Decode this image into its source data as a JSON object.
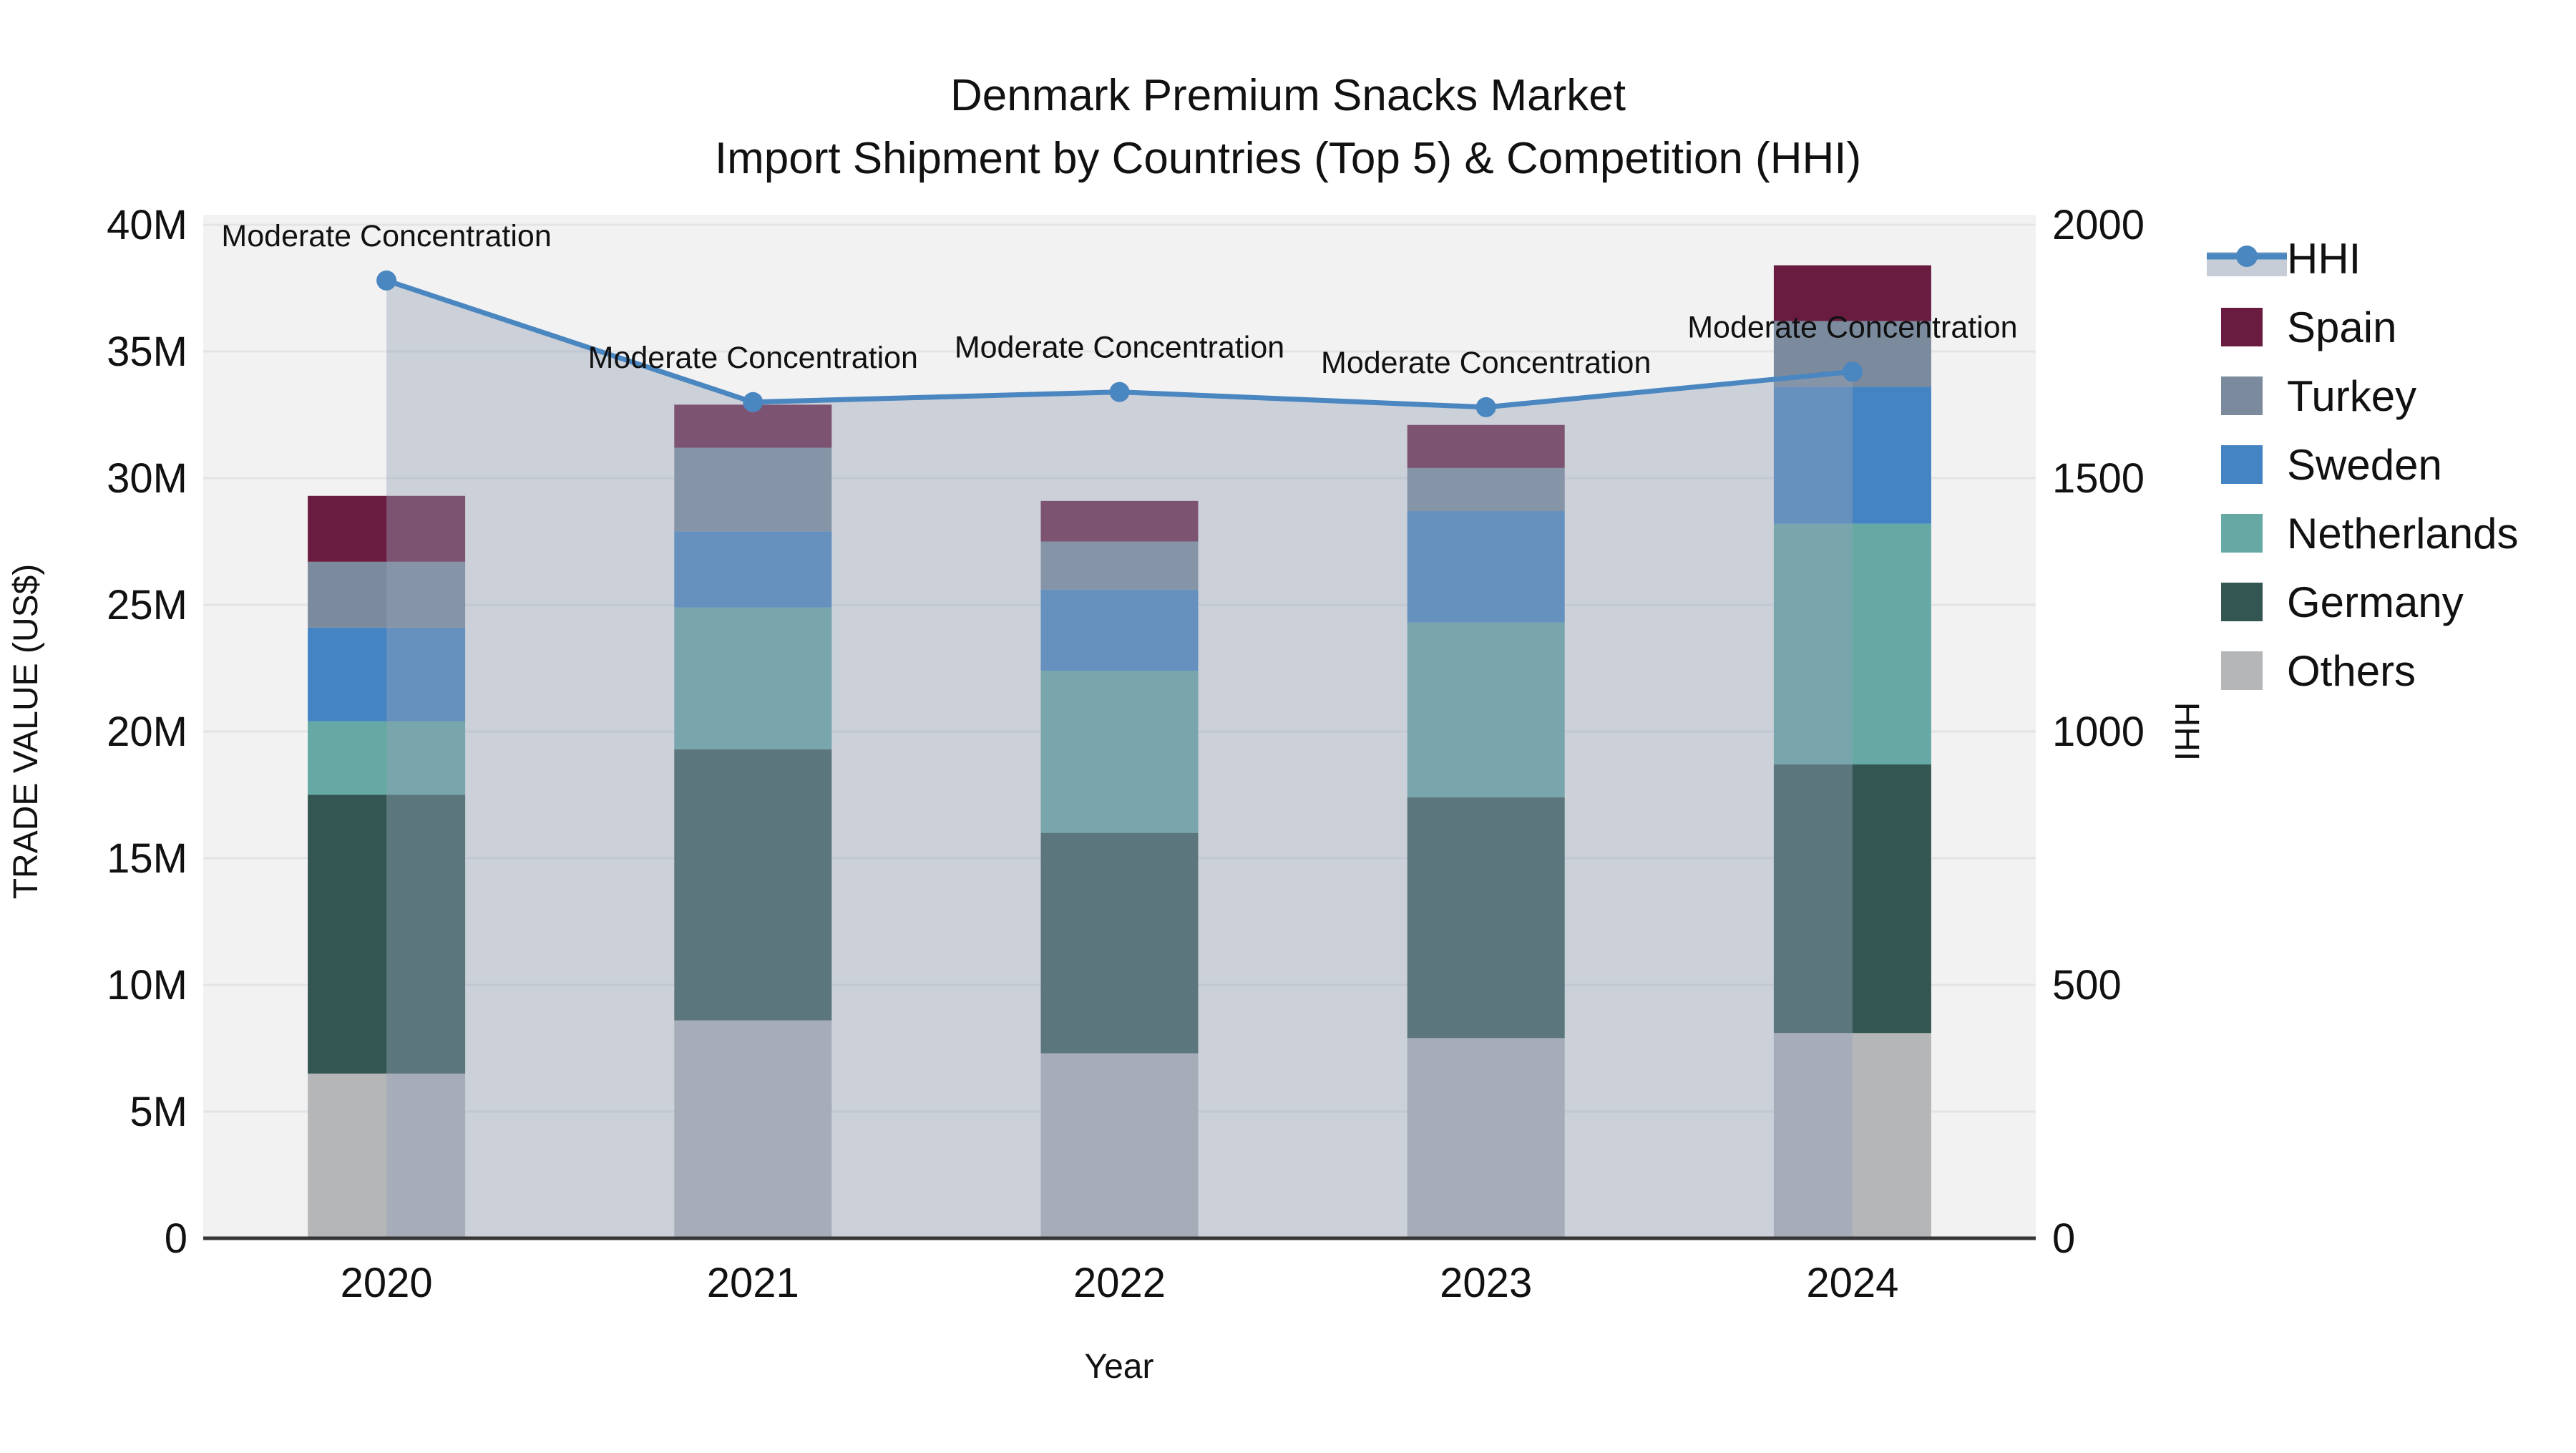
{
  "title": {
    "line1": "Denmark Premium Snacks Market",
    "line2": "Import Shipment by Countries (Top 5) & Competition (HHI)"
  },
  "chart_data": {
    "type": "bar+line",
    "title": "Denmark Premium Snacks Market — Import Shipment by Countries (Top 5) & Competition (HHI)",
    "categories": [
      "2020",
      "2021",
      "2022",
      "2023",
      "2024"
    ],
    "stack_order_note": "series listed bottom-to-top of the stacked bars, values in millions US$",
    "series": [
      {
        "name": "Others",
        "color": "#b4b6b8",
        "values": [
          6.5,
          8.6,
          7.3,
          7.9,
          8.1
        ]
      },
      {
        "name": "Germany",
        "color": "#335653",
        "values": [
          11.0,
          10.7,
          8.7,
          9.5,
          10.6
        ]
      },
      {
        "name": "Netherlands",
        "color": "#65a8a4",
        "values": [
          2.9,
          5.6,
          6.4,
          6.9,
          9.5
        ]
      },
      {
        "name": "Sweden",
        "color": "#4484c2",
        "values": [
          3.7,
          3.0,
          3.2,
          4.4,
          5.4
        ]
      },
      {
        "name": "Turkey",
        "color": "#7b8a9d",
        "values": [
          2.6,
          3.3,
          1.9,
          1.7,
          2.6
        ]
      },
      {
        "name": "Spain",
        "color": "#6a1c40",
        "values": [
          2.6,
          1.7,
          1.6,
          1.7,
          2.2
        ]
      }
    ],
    "bar_totals": [
      29.3,
      32.9,
      29.1,
      32.1,
      38.4
    ],
    "hhi": {
      "name": "HHI",
      "line_color": "#4a86c0",
      "area_fill": "rgba(150,163,183,0.42)",
      "legend_band_color": "#c7cdd7",
      "values": [
        1890,
        1650,
        1670,
        1640,
        1710
      ],
      "point_labels": [
        "Moderate Concentration",
        "Moderate Concentration",
        "Moderate Concentration",
        "Moderate Concentration",
        "Moderate Concentration"
      ]
    },
    "x": {
      "title": "Year"
    },
    "y_left": {
      "title": "TRADE VALUE (US$)",
      "range_millions": [
        0,
        40
      ],
      "ticks": [
        {
          "value": 0,
          "label": "0"
        },
        {
          "value": 5,
          "label": "5M"
        },
        {
          "value": 10,
          "label": "10M"
        },
        {
          "value": 15,
          "label": "15M"
        },
        {
          "value": 20,
          "label": "20M"
        },
        {
          "value": 25,
          "label": "25M"
        },
        {
          "value": 30,
          "label": "30M"
        },
        {
          "value": 35,
          "label": "35M"
        },
        {
          "value": 40,
          "label": "40M"
        }
      ]
    },
    "y_right": {
      "title": "HHI",
      "range": [
        0,
        2000
      ],
      "ticks": [
        {
          "value": 0,
          "label": "0"
        },
        {
          "value": 500,
          "label": "500"
        },
        {
          "value": 1000,
          "label": "1000"
        },
        {
          "value": 1500,
          "label": "1500"
        },
        {
          "value": 2000,
          "label": "2000"
        }
      ]
    },
    "legend": [
      {
        "name": "HHI",
        "kind": "line",
        "color": "#4a86c0"
      },
      {
        "name": "Spain",
        "kind": "square",
        "color": "#6a1c40"
      },
      {
        "name": "Turkey",
        "kind": "square",
        "color": "#7b8a9d"
      },
      {
        "name": "Sweden",
        "kind": "square",
        "color": "#4484c2"
      },
      {
        "name": "Netherlands",
        "kind": "square",
        "color": "#65a8a4"
      },
      {
        "name": "Germany",
        "kind": "square",
        "color": "#335653"
      },
      {
        "name": "Others",
        "kind": "square",
        "color": "#b4b6b8"
      }
    ],
    "style": {
      "plot_bg": "#f2f2f2",
      "grid": "#e2e4e6",
      "axis_line": "#363636",
      "annotation_color": "#111111",
      "legend_position": "right",
      "grid_on": true
    }
  }
}
